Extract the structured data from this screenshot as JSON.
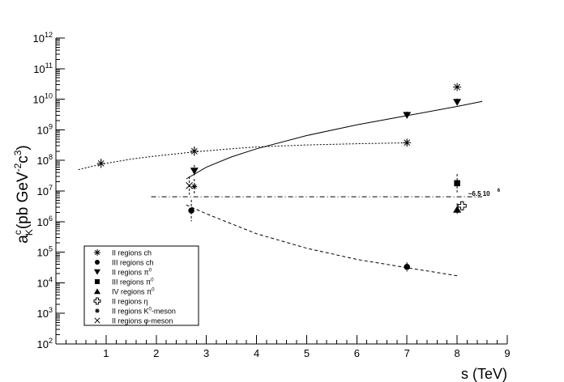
{
  "chart_data": {
    "type": "scatter",
    "xlabel": "s (TeV)",
    "ylabel_main": "a",
    "ylabel_sup": "c",
    "ylabel_sub": "K",
    "ylabel_unit_a": "(pb GeV",
    "ylabel_unit_exp1": "-2",
    "ylabel_unit_c": "c",
    "ylabel_unit_exp2": "3",
    "ylabel_unit_close": ")",
    "xlim": [
      0,
      9
    ],
    "ylim_log10": [
      2,
      12
    ],
    "y_scale": "log",
    "grid": false,
    "legend_placement": "bottom-left",
    "x_ticks": [
      "1",
      "2",
      "3",
      "4",
      "5",
      "6",
      "7",
      "8",
      "9"
    ],
    "y_ticks": [
      {
        "base": "10",
        "exp": "2"
      },
      {
        "base": "10",
        "exp": "3"
      },
      {
        "base": "10",
        "exp": "4"
      },
      {
        "base": "10",
        "exp": "5"
      },
      {
        "base": "10",
        "exp": "6"
      },
      {
        "base": "10",
        "exp": "7"
      },
      {
        "base": "10",
        "exp": "8"
      },
      {
        "base": "10",
        "exp": "9"
      },
      {
        "base": "10",
        "exp": "10"
      },
      {
        "base": "10",
        "exp": "11"
      },
      {
        "base": "10",
        "exp": "12"
      }
    ],
    "series": [
      {
        "name": "II regions ch",
        "name_sup": "",
        "name_tail": "",
        "marker": "star",
        "points": [
          {
            "x": 0.9,
            "y": 80000000.0,
            "err": 0.15
          },
          {
            "x": 2.76,
            "y": 200000000.0,
            "err": 0.15
          },
          {
            "x": 7.0,
            "y": 380000000.0,
            "err": 0.1
          },
          {
            "x": 8.0,
            "y": 25000000000.0,
            "err": 0
          }
        ]
      },
      {
        "name": "III regions ch",
        "name_sup": "",
        "name_tail": "",
        "marker": "circle",
        "points": [
          {
            "x": 2.7,
            "y": 2300000.0,
            "err": 0.35
          },
          {
            "x": 7.0,
            "y": 33000.0,
            "err": 0.15
          }
        ]
      },
      {
        "name": "II regions  π",
        "name_sup": "0",
        "name_tail": "",
        "marker": "triangle-down",
        "points": [
          {
            "x": 2.76,
            "y": 45000000.0,
            "err": 0.2
          },
          {
            "x": 7.0,
            "y": 3000000000.0,
            "err": 0.12
          },
          {
            "x": 8.0,
            "y": 8000000000.0,
            "err": 0.12
          }
        ]
      },
      {
        "name": "III regions  π",
        "name_sup": "0",
        "name_tail": "",
        "marker": "square",
        "points": [
          {
            "x": 8.0,
            "y": 18000000.0,
            "err": 0.3
          }
        ]
      },
      {
        "name": "IV regions  π",
        "name_sup": "0",
        "name_tail": "",
        "marker": "triangle-up",
        "points": [
          {
            "x": 8.0,
            "y": 2500000.0,
            "err": 0.2
          }
        ]
      },
      {
        "name": "II regions   η",
        "name_sup": "",
        "name_tail": "",
        "marker": "open-cross",
        "points": [
          {
            "x": 8.1,
            "y": 3300000.0,
            "err": 0.15
          }
        ]
      },
      {
        "name": "II regions K",
        "name_sup": "0",
        "name_tail": "-meson",
        "marker": "small-star",
        "points": [
          {
            "x": 2.76,
            "y": 14000000.0,
            "err": 0.25
          }
        ]
      },
      {
        "name": "II regions  φ-meson",
        "name_sup": "",
        "name_tail": "",
        "marker": "x",
        "points": [
          {
            "x": 2.66,
            "y": 15000000.0,
            "err": 0.3
          }
        ]
      }
    ],
    "fits": [
      {
        "style": "dotted",
        "points": [
          [
            0.45,
            50000000.0
          ],
          [
            0.9,
            75000000.0
          ],
          [
            1.5,
            110000000.0
          ],
          [
            2.0,
            140000000.0
          ],
          [
            2.76,
            190000000.0
          ],
          [
            3.5,
            240000000.0
          ],
          [
            4.0,
            275000000.0
          ],
          [
            5.0,
            320000000.0
          ],
          [
            6.0,
            350000000.0
          ],
          [
            7.0,
            375000000.0
          ]
        ]
      },
      {
        "style": "solid",
        "points": [
          [
            2.6,
            25000000.0
          ],
          [
            3.0,
            60000000.0
          ],
          [
            3.5,
            130000000.0
          ],
          [
            4.0,
            240000000.0
          ],
          [
            5.0,
            650000000.0
          ],
          [
            6.0,
            1450000000.0
          ],
          [
            7.0,
            2900000000.0
          ],
          [
            8.0,
            5800000000.0
          ],
          [
            8.5,
            8500000000.0
          ]
        ]
      },
      {
        "style": "dashed",
        "points": [
          [
            2.6,
            3500000.0
          ],
          [
            3.0,
            1800000.0
          ],
          [
            3.5,
            850000.0
          ],
          [
            4.0,
            400000.0
          ],
          [
            5.0,
            135000.0
          ],
          [
            6.0,
            58000.0
          ],
          [
            7.0,
            31000.0
          ],
          [
            8.0,
            17000.0
          ]
        ]
      },
      {
        "style": "dashdot",
        "points": [
          [
            1.9,
            6500000.0
          ],
          [
            8.5,
            6500000.0
          ]
        ]
      }
    ],
    "annotation": {
      "text": "~6.5 10",
      "sup": "6",
      "x": 8.22,
      "y": 7000000.0
    }
  }
}
